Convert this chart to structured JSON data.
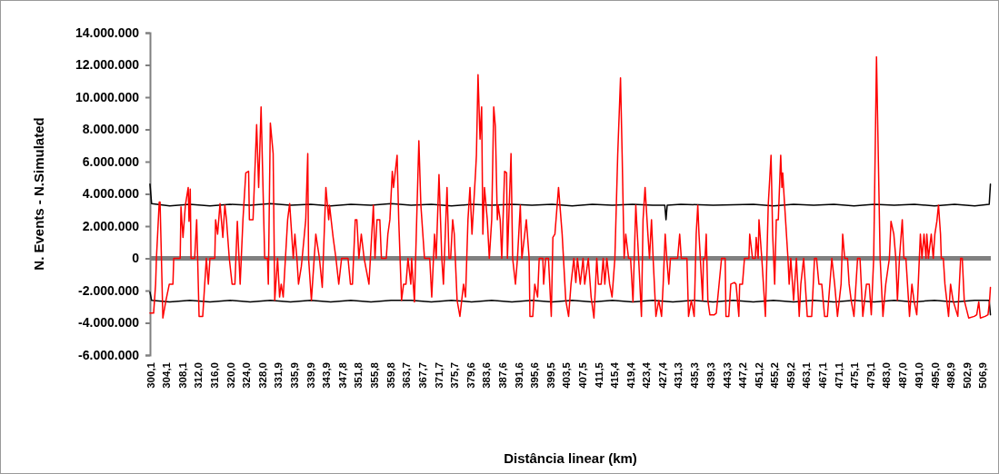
{
  "chart_data": {
    "type": "line",
    "xlabel": "Distância linear (km)",
    "ylabel": "N. Events - N.Simulated",
    "xlim": [
      300.1,
      509.0
    ],
    "xticks": [
      {
        "value": 300.1,
        "label": "300,1"
      },
      {
        "value": 304.1,
        "label": "304,1"
      },
      {
        "value": 308.1,
        "label": "308,1"
      },
      {
        "value": 312.0,
        "label": "312,0"
      },
      {
        "value": 316.0,
        "label": "316,0"
      },
      {
        "value": 320.0,
        "label": "320,0"
      },
      {
        "value": 324.0,
        "label": "324,0"
      },
      {
        "value": 328.0,
        "label": "328,0"
      },
      {
        "value": 331.9,
        "label": "331,9"
      },
      {
        "value": 335.9,
        "label": "335,9"
      },
      {
        "value": 339.9,
        "label": "339,9"
      },
      {
        "value": 343.9,
        "label": "343,9"
      },
      {
        "value": 347.8,
        "label": "347,8"
      },
      {
        "value": 351.8,
        "label": "351,8"
      },
      {
        "value": 355.8,
        "label": "355,8"
      },
      {
        "value": 359.8,
        "label": "359,8"
      },
      {
        "value": 363.7,
        "label": "363,7"
      },
      {
        "value": 367.7,
        "label": "367,7"
      },
      {
        "value": 371.7,
        "label": "371,7"
      },
      {
        "value": 375.7,
        "label": "375,7"
      },
      {
        "value": 379.6,
        "label": "379,6"
      },
      {
        "value": 383.6,
        "label": "383,6"
      },
      {
        "value": 387.6,
        "label": "387,6"
      },
      {
        "value": 391.6,
        "label": "391,6"
      },
      {
        "value": 395.6,
        "label": "395,6"
      },
      {
        "value": 399.5,
        "label": "399,5"
      },
      {
        "value": 403.5,
        "label": "403,5"
      },
      {
        "value": 407.5,
        "label": "407,5"
      },
      {
        "value": 411.5,
        "label": "411,5"
      },
      {
        "value": 415.4,
        "label": "415,4"
      },
      {
        "value": 419.4,
        "label": "419,4"
      },
      {
        "value": 423.4,
        "label": "423,4"
      },
      {
        "value": 427.4,
        "label": "427,4"
      },
      {
        "value": 431.3,
        "label": "431,3"
      },
      {
        "value": 435.3,
        "label": "435,3"
      },
      {
        "value": 439.3,
        "label": "439,3"
      },
      {
        "value": 443.3,
        "label": "443,3"
      },
      {
        "value": 447.2,
        "label": "447,2"
      },
      {
        "value": 451.2,
        "label": "451,2"
      },
      {
        "value": 455.2,
        "label": "455,2"
      },
      {
        "value": 459.2,
        "label": "459,2"
      },
      {
        "value": 463.1,
        "label": "463,1"
      },
      {
        "value": 467.1,
        "label": "467,1"
      },
      {
        "value": 471.1,
        "label": "471,1"
      },
      {
        "value": 475.1,
        "label": "475,1"
      },
      {
        "value": 479.1,
        "label": "479,1"
      },
      {
        "value": 483.0,
        "label": "483,0"
      },
      {
        "value": 487.0,
        "label": "487,0"
      },
      {
        "value": 491.0,
        "label": "491,0"
      },
      {
        "value": 495.0,
        "label": "495,0"
      },
      {
        "value": 498.9,
        "label": "498,9"
      },
      {
        "value": 502.9,
        "label": "502,9"
      },
      {
        "value": 506.9,
        "label": "506,9"
      }
    ],
    "ylim": [
      -6000000,
      14000000
    ],
    "yticks": [
      {
        "value": -6000000,
        "label": "-6.000.000"
      },
      {
        "value": -4000000,
        "label": "-4.000.000"
      },
      {
        "value": -2000000,
        "label": "-2.000.000"
      },
      0,
      {
        "value": 2000000,
        "label": "2.000.000"
      },
      {
        "value": 4000000,
        "label": "4.000.000"
      },
      {
        "value": 6000000,
        "label": "6.000.000"
      },
      {
        "value": 8000000,
        "label": "8.000.000"
      },
      {
        "value": 10000000,
        "label": "10.000.000"
      },
      {
        "value": 12000000,
        "label": "12.000.000"
      },
      {
        "value": 14000000,
        "label": "14.000.000"
      }
    ],
    "ref_lines": [
      {
        "axis": "y",
        "value": 0,
        "color": "#808080"
      }
    ],
    "series": [
      {
        "color": "#ff0000",
        "x": [
          300.1,
          301.0,
          301.5,
          301.7,
          302.4,
          302.6,
          303.3,
          304.0,
          304.4,
          304.9,
          305.8,
          306.0,
          307.6,
          307.8,
          308.3,
          308.9,
          309.6,
          309.8,
          310.1,
          310.3,
          311.2,
          311.7,
          312.3,
          313.2,
          314.1,
          314.6,
          315.0,
          316.2,
          316.4,
          316.9,
          317.5,
          318.2,
          318.7,
          319.1,
          319.8,
          320.5,
          321.2,
          321.8,
          322.5,
          323.2,
          323.9,
          324.6,
          324.8,
          325.7,
          326.6,
          327.1,
          327.7,
          328.6,
          329.3,
          329.5,
          330.0,
          330.7,
          331.1,
          331.8,
          332.3,
          332.7,
          333.2,
          334.3,
          334.8,
          335.7,
          336.1,
          336.6,
          337.0,
          337.7,
          337.9,
          338.8,
          339.3,
          339.5,
          340.2,
          341.3,
          342.2,
          342.9,
          343.8,
          344.5,
          344.7,
          345.6,
          346.3,
          347.0,
          347.7,
          349.3,
          349.9,
          350.4,
          351.1,
          351.5,
          352.0,
          352.6,
          353.3,
          354.5,
          355.6,
          356.0,
          356.5,
          357.2,
          357.6,
          358.8,
          359.2,
          359.7,
          360.3,
          360.6,
          361.5,
          361.9,
          362.6,
          363.1,
          363.7,
          364.2,
          364.9,
          365.1,
          365.8,
          366.9,
          367.4,
          368.3,
          369.6,
          370.1,
          370.8,
          371.2,
          371.9,
          372.6,
          373.0,
          373.9,
          374.4,
          374.8,
          375.3,
          375.7,
          376.4,
          377.1,
          378.0,
          378.5,
          379.1,
          379.6,
          380.1,
          381.0,
          381.2,
          381.6,
          382.1,
          382.5,
          382.8,
          383.2,
          383.9,
          384.4,
          385.0,
          385.5,
          385.9,
          386.4,
          386.6,
          387.1,
          387.5,
          388.2,
          388.7,
          388.9,
          389.8,
          390.2,
          390.9,
          391.4,
          392.1,
          392.5,
          393.2,
          393.6,
          394.3,
          394.5,
          395.2,
          395.7,
          396.4,
          396.8,
          397.7,
          397.9,
          398.4,
          399.1,
          399.8,
          400.2,
          400.7,
          401.6,
          402.5,
          403.4,
          404.1,
          404.7,
          405.4,
          405.9,
          406.3,
          407.0,
          407.7,
          408.1,
          409.0,
          409.7,
          410.4,
          411.1,
          411.5,
          412.2,
          412.7,
          413.1,
          413.6,
          414.3,
          414.9,
          415.6,
          416.3,
          417.0,
          417.4,
          417.9,
          418.3,
          419.0,
          419.5,
          420.1,
          420.8,
          421.5,
          422.2,
          422.6,
          423.1,
          423.8,
          424.2,
          424.7,
          425.1,
          425.8,
          426.5,
          427.2,
          427.6,
          428.1,
          428.5,
          429.0,
          429.4,
          431.2,
          431.7,
          432.1,
          433.5,
          433.9,
          434.6,
          435.3,
          435.8,
          436.2,
          436.5,
          437.4,
          437.6,
          438.0,
          438.3,
          438.7,
          439.2,
          440.3,
          440.8,
          442.1,
          443.0,
          443.2,
          443.9,
          444.4,
          445.3,
          445.7,
          446.4,
          446.6,
          447.3,
          447.8,
          448.9,
          449.1,
          449.8,
          450.5,
          450.7,
          451.2,
          451.4,
          452.1,
          452.5,
          453.0,
          453.7,
          454.4,
          454.8,
          455.3,
          455.7,
          456.2,
          456.8,
          457.1,
          457.3,
          457.7,
          458.0,
          458.6,
          458.9,
          459.3,
          460.0,
          460.7,
          461.4,
          461.8,
          462.5,
          463.4,
          464.5,
          465.2,
          465.7,
          466.3,
          467.0,
          467.7,
          468.4,
          469.5,
          470.2,
          470.9,
          471.8,
          472.2,
          472.7,
          473.4,
          473.8,
          474.3,
          475.0,
          475.9,
          476.5,
          477.2,
          478.1,
          478.8,
          479.3,
          479.9,
          480.6,
          481.5,
          482.2,
          482.9,
          483.8,
          484.2,
          484.9,
          485.4,
          485.8,
          486.3,
          487.0,
          487.4,
          487.9,
          488.3,
          488.8,
          489.4,
          489.9,
          490.6,
          490.8,
          491.5,
          491.9,
          492.4,
          492.9,
          493.1,
          493.5,
          494.2,
          494.7,
          495.1,
          495.6,
          496.0,
          496.5,
          496.7,
          497.2,
          497.6,
          498.5,
          499.0,
          499.6,
          500.8,
          501.5,
          501.9,
          502.4,
          503.5,
          504.9,
          505.5,
          506.0,
          506.4,
          507.6,
          508.3,
          508.7,
          508.9
        ],
        "values": [
          -3400000,
          -3400000,
          -1600000,
          0,
          3500000,
          3500000,
          -3700000,
          -2700000,
          -2200000,
          -1600000,
          -1600000,
          0,
          0,
          3200000,
          1300000,
          3300000,
          4400000,
          2300000,
          4300000,
          0,
          0,
          2400000,
          -3600000,
          -3600000,
          0,
          -1600000,
          0,
          0,
          2400000,
          1500000,
          3400000,
          1300000,
          3300000,
          2400000,
          0,
          -1600000,
          -1600000,
          2300000,
          -1600000,
          2400000,
          5300000,
          5400000,
          2400000,
          2400000,
          8300000,
          4400000,
          9400000,
          0,
          0,
          -1600000,
          8400000,
          6500000,
          -2600000,
          0,
          -2400000,
          -1600000,
          -2400000,
          2400000,
          3400000,
          0,
          1500000,
          0,
          -1600000,
          -500000,
          0,
          2400000,
          6500000,
          0,
          -2600000,
          1500000,
          0,
          -1800000,
          4400000,
          2400000,
          3300000,
          1300000,
          0,
          -1600000,
          0,
          0,
          -1600000,
          -1600000,
          2400000,
          2400000,
          0,
          1500000,
          0,
          -1600000,
          3300000,
          0,
          2400000,
          2400000,
          0,
          0,
          1500000,
          2400000,
          5400000,
          4400000,
          6400000,
          2400000,
          -2600000,
          -1600000,
          -1600000,
          0,
          -1600000,
          0,
          -2700000,
          7300000,
          3300000,
          0,
          0,
          -2400000,
          1500000,
          0,
          5200000,
          0,
          -1600000,
          4400000,
          0,
          0,
          2400000,
          1500000,
          -2600000,
          -3600000,
          -1600000,
          -2400000,
          2400000,
          4400000,
          1500000,
          5400000,
          6400000,
          11400000,
          7400000,
          9400000,
          1500000,
          4400000,
          2400000,
          0,
          2400000,
          9400000,
          8200000,
          2400000,
          3300000,
          2400000,
          0,
          5400000,
          5300000,
          0,
          6500000,
          0,
          -1600000,
          0,
          3300000,
          0,
          1500000,
          2400000,
          0,
          -3600000,
          -3600000,
          -1600000,
          -2400000,
          0,
          0,
          -1600000,
          0,
          0,
          -3600000,
          1300000,
          1500000,
          4400000,
          1500000,
          -2600000,
          -3600000,
          -1600000,
          0,
          -1500000,
          0,
          -1600000,
          0,
          -1600000,
          0,
          -2400000,
          -3700000,
          0,
          -1600000,
          -1600000,
          0,
          -1600000,
          0,
          -1600000,
          -2400000,
          0,
          6400000,
          11200000,
          6500000,
          0,
          1500000,
          0,
          0,
          -2700000,
          3300000,
          0,
          -3600000,
          2400000,
          4400000,
          1500000,
          0,
          2400000,
          0,
          -3600000,
          -2600000,
          -3600000,
          -1600000,
          1500000,
          0,
          -1600000,
          0,
          0,
          1500000,
          0,
          0,
          -3600000,
          -2600000,
          -3600000,
          1500000,
          3300000,
          1500000,
          -2600000,
          0,
          0,
          1500000,
          -2600000,
          -3500000,
          -3500000,
          -3400000,
          0,
          0,
          -3600000,
          -3600000,
          -1600000,
          -1500000,
          -1600000,
          -3600000,
          -1600000,
          -1600000,
          0,
          0,
          1500000,
          0,
          0,
          1300000,
          0,
          2400000,
          0,
          -1600000,
          -3600000,
          3300000,
          6400000,
          1500000,
          -1600000,
          2400000,
          2400000,
          6400000,
          4400000,
          5300000,
          3600000,
          2400000,
          0,
          -1600000,
          0,
          -2600000,
          0,
          -3600000,
          -1600000,
          0,
          -3600000,
          -3600000,
          0,
          0,
          -1600000,
          -1600000,
          -3600000,
          -3600000,
          0,
          -1600000,
          -3600000,
          -1600000,
          1500000,
          0,
          0,
          -1600000,
          -2600000,
          -3600000,
          0,
          0,
          -3600000,
          -1600000,
          -1600000,
          -3500000,
          0,
          12500000,
          0,
          -3600000,
          -1600000,
          0,
          2300000,
          1500000,
          0,
          -2600000,
          0,
          2400000,
          0,
          0,
          -1600000,
          -3600000,
          -1600000,
          -2600000,
          -3500000,
          -2600000,
          1500000,
          0,
          1500000,
          0,
          1500000,
          0,
          1500000,
          0,
          1500000,
          2300000,
          3300000,
          1500000,
          0,
          0,
          -1600000,
          -3600000,
          -1600000,
          -2600000,
          -3600000,
          0,
          0,
          -2600000,
          -3700000,
          -3600000,
          -3500000,
          -2700000,
          -3700000,
          -3600000,
          -3500000,
          -2600000,
          -1800000
        ]
      },
      {
        "color": "#000000",
        "x": [
          300.1,
          300.5,
          305,
          310,
          315,
          320,
          325,
          330,
          335,
          340,
          345,
          350,
          355,
          360,
          365,
          370,
          375,
          380,
          385,
          390,
          395,
          400,
          405,
          410,
          415,
          420,
          425,
          428.0,
          428.3,
          428.6,
          432,
          440,
          450,
          455,
          460,
          465,
          470,
          475,
          480,
          485,
          490,
          495,
          500,
          505,
          508.6,
          508.9
        ],
        "values": [
          4600000,
          3400000,
          3250000,
          3350000,
          3250000,
          3350000,
          3300000,
          3400000,
          3300000,
          3350000,
          3250000,
          3350000,
          3300000,
          3400000,
          3300000,
          3350000,
          3250000,
          3350000,
          3300000,
          3350000,
          3300000,
          3350000,
          3250000,
          3350000,
          3300000,
          3350000,
          3300000,
          3300000,
          2400000,
          3300000,
          3350000,
          3300000,
          3350000,
          3250000,
          3350000,
          3300000,
          3350000,
          3250000,
          3350000,
          3300000,
          3350000,
          3250000,
          3350000,
          3250000,
          3350000,
          4600000
        ]
      },
      {
        "color": "#000000",
        "x": [
          300.1,
          300.5,
          305,
          310,
          315,
          320,
          325,
          330,
          335,
          340,
          345,
          350,
          355,
          360,
          365,
          370,
          375,
          380,
          385,
          390,
          395,
          400,
          405,
          410,
          415,
          420,
          425,
          430,
          435,
          440,
          445,
          450,
          455,
          460,
          465,
          470,
          475,
          480,
          485,
          490,
          495,
          500,
          505,
          508.6,
          508.9
        ],
        "values": [
          -2100000,
          -2600000,
          -2700000,
          -2600000,
          -2700000,
          -2600000,
          -2700000,
          -2600000,
          -2700000,
          -2600000,
          -2700000,
          -2600000,
          -2700000,
          -2600000,
          -2600000,
          -2700000,
          -2600000,
          -2700000,
          -2600000,
          -2700000,
          -2600000,
          -2700000,
          -2600000,
          -2700000,
          -2600000,
          -2700000,
          -2600000,
          -2700000,
          -2600000,
          -2700000,
          -2600000,
          -2700000,
          -2600000,
          -2700000,
          -2600000,
          -2700000,
          -2600000,
          -2700000,
          -2600000,
          -2700000,
          -2600000,
          -2700000,
          -2600000,
          -2600000,
          -3500000
        ]
      }
    ]
  }
}
